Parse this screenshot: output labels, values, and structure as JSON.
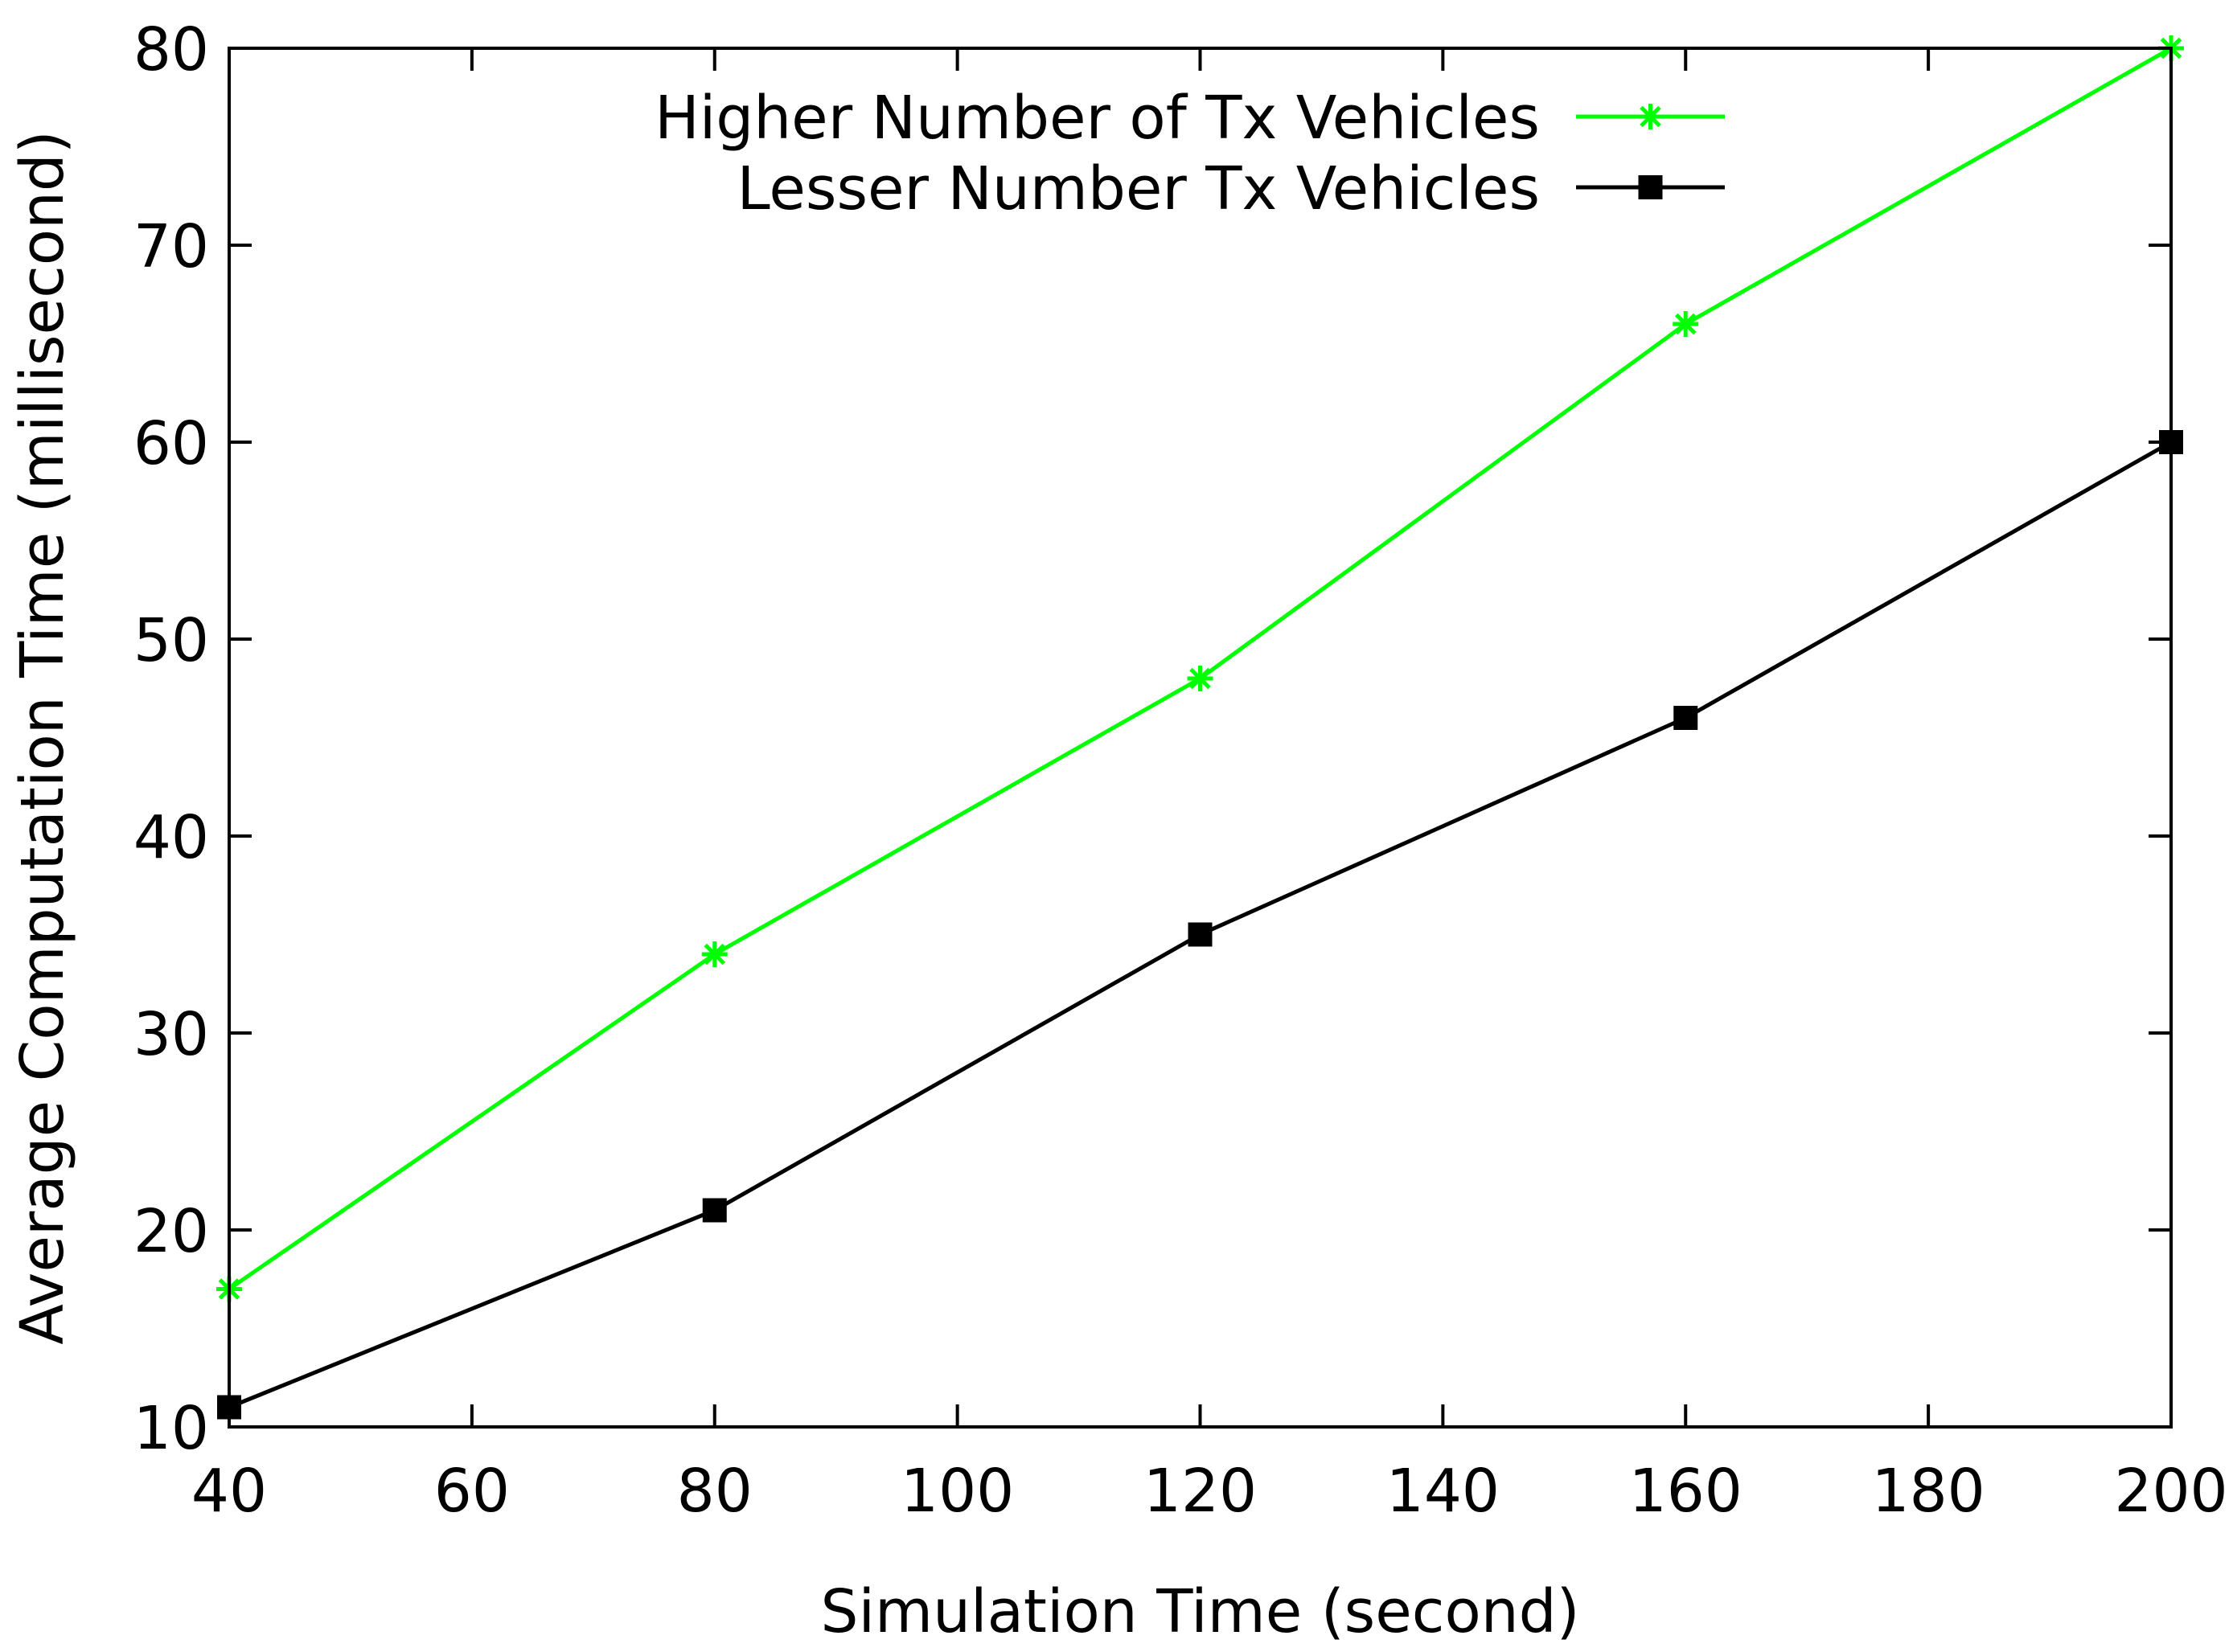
{
  "chart_data": {
    "type": "line",
    "title": "",
    "xlabel": "Simulation Time (second)",
    "ylabel": "Average Computation Time (millisecond)",
    "xlim": [
      40,
      200
    ],
    "ylim": [
      10,
      80
    ],
    "xticks": [
      40,
      60,
      80,
      100,
      120,
      140,
      160,
      180,
      200
    ],
    "yticks": [
      10,
      20,
      30,
      40,
      50,
      60,
      70,
      80
    ],
    "grid": false,
    "legend_position": "top-right",
    "series": [
      {
        "name": "Higher Number of Tx Vehicles",
        "color": "#00ff00",
        "marker": "asterisk",
        "x": [
          40,
          80,
          120,
          160,
          200
        ],
        "y": [
          17,
          34,
          48,
          66,
          80
        ]
      },
      {
        "name": "Lesser Number Tx Vehicles",
        "color": "#000000",
        "marker": "square",
        "x": [
          40,
          80,
          120,
          160,
          200
        ],
        "y": [
          11,
          21,
          35,
          46,
          60
        ]
      }
    ]
  }
}
